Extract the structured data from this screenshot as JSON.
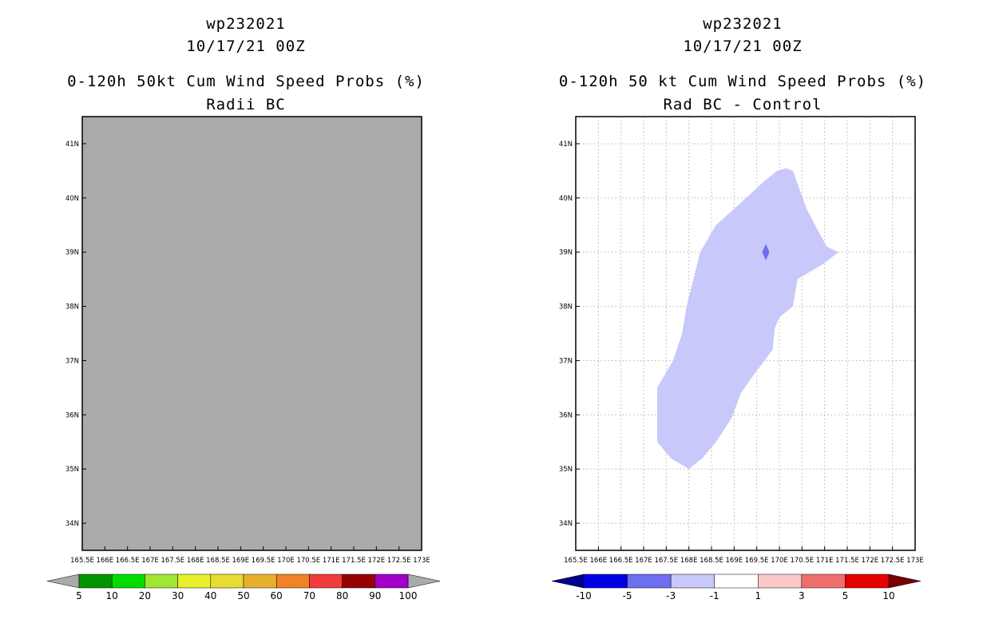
{
  "left_panel": {
    "storm_id": "wp232021",
    "datetime": "10/17/21 00Z",
    "title": "0-120h 50kt Cum Wind Speed Probs (%)",
    "subtitle": "Radii BC",
    "map_fill_color": "#aaaaaa"
  },
  "right_panel": {
    "storm_id": "wp232021",
    "datetime": "10/17/21 00Z",
    "title": "0-120h 50 kt Cum Wind Speed Probs (%)",
    "subtitle": "Rad BC - Control"
  },
  "map_axes": {
    "lon_labels": [
      "165.5E",
      "166E",
      "166.5E",
      "167E",
      "167.5E",
      "168E",
      "168.5E",
      "169E",
      "169.5E",
      "170E",
      "170.5E",
      "171E",
      "171.5E",
      "172E",
      "172.5E",
      "173E"
    ],
    "lat_labels": [
      "34N",
      "35N",
      "36N",
      "37N",
      "38N",
      "39N",
      "40N",
      "41N"
    ],
    "lon_range": [
      165.5,
      173.0
    ],
    "lat_range": [
      33.5,
      41.5
    ]
  },
  "left_colorbar": {
    "labels": [
      "5",
      "10",
      "20",
      "30",
      "40",
      "50",
      "60",
      "70",
      "80",
      "90",
      "100"
    ],
    "colors": [
      "#009600",
      "#00dc00",
      "#a0e632",
      "#e6f02d",
      "#e6dc32",
      "#e6af2d",
      "#f08228",
      "#f03c3c",
      "#960000",
      "#a000c8"
    ],
    "end_color": "#aaaaaa"
  },
  "right_colorbar": {
    "labels": [
      "-10",
      "-5",
      "-3",
      "-1",
      "1",
      "3",
      "5",
      "10"
    ],
    "colors": [
      "#0000e6",
      "#6e6ef0",
      "#c8c8fa",
      "#ffffff",
      "#fac8c8",
      "#f06e6e",
      "#e60000"
    ],
    "low_end_color": "#00008c",
    "high_end_color": "#780000"
  },
  "difference_field": {
    "light_region_color": "#c8c8fa",
    "light_region_value_range": "-3 to -1",
    "light_region_outline": [
      [
        168.0,
        35.0
      ],
      [
        167.6,
        35.2
      ],
      [
        167.3,
        35.5
      ],
      [
        167.3,
        36.5
      ],
      [
        167.65,
        37.0
      ],
      [
        167.85,
        37.5
      ],
      [
        167.95,
        38.0
      ],
      [
        168.25,
        39.0
      ],
      [
        168.6,
        39.5
      ],
      [
        169.2,
        39.95
      ],
      [
        169.65,
        40.3
      ],
      [
        169.95,
        40.5
      ],
      [
        170.15,
        40.55
      ],
      [
        170.3,
        40.5
      ],
      [
        170.6,
        39.8
      ],
      [
        170.85,
        39.4
      ],
      [
        171.05,
        39.1
      ],
      [
        171.3,
        39.0
      ],
      [
        171.0,
        38.8
      ],
      [
        170.4,
        38.5
      ],
      [
        170.3,
        38.0
      ],
      [
        170.0,
        37.8
      ],
      [
        169.9,
        37.6
      ],
      [
        169.85,
        37.2
      ],
      [
        169.4,
        36.7
      ],
      [
        169.15,
        36.4
      ],
      [
        168.95,
        35.95
      ],
      [
        168.6,
        35.5
      ],
      [
        168.3,
        35.2
      ]
    ],
    "dark_spot_color": "#6e6ef0",
    "dark_spot_value_range": "-5 to -3",
    "dark_spot_outline": [
      [
        169.7,
        38.85
      ],
      [
        169.78,
        39.0
      ],
      [
        169.7,
        39.15
      ],
      [
        169.62,
        39.0
      ]
    ]
  }
}
